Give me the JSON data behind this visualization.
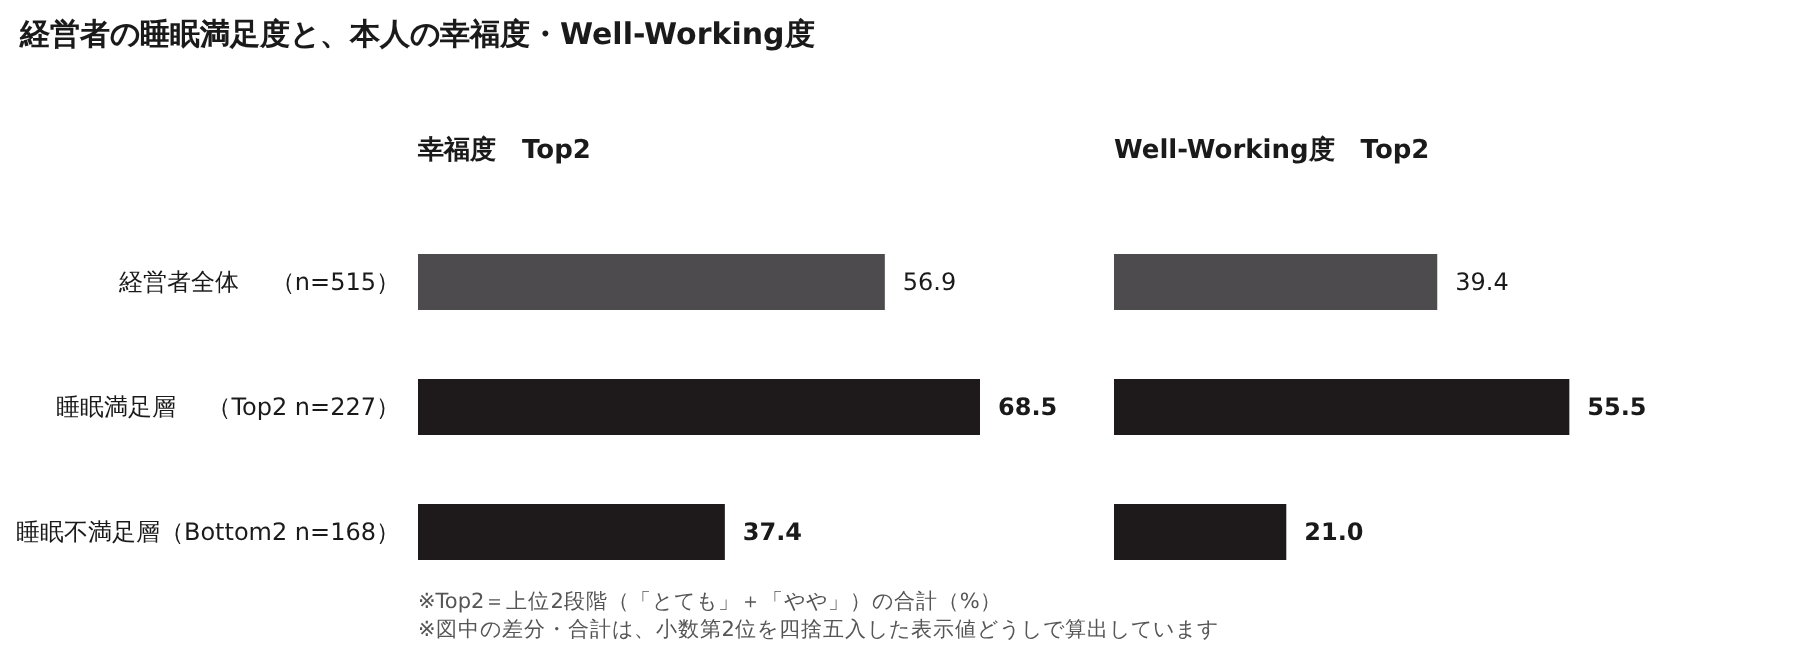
{
  "chart_data": [
    {
      "type": "bar",
      "orientation": "horizontal",
      "title": "経営者の睡眠満足度と、本人の幸福度・Well-Working度",
      "subtitle": "幸福度　Top2",
      "categories": [
        "経営者全体　 （n=515）",
        "睡眠満足層　 （Top2 n=227）",
        "睡眠不満足層（Bottom2 n=168）"
      ],
      "values": [
        56.9,
        68.5,
        37.4
      ],
      "value_labels": [
        "56.9",
        "68.5",
        "37.4"
      ],
      "colors": [
        "#4d4b4e",
        "#1e1a1c",
        "#1e1a1c"
      ],
      "annotations": [
        "※Top2＝上位2段階（「とても」＋「やや」）の合計（%）",
        "※図中の差分・合計は、小数第2位を四捨五入した表示値どうしで算出しています"
      ]
    },
    {
      "type": "bar",
      "orientation": "horizontal",
      "subtitle": "Well-Working度　Top2",
      "values": [
        39.4,
        55.5,
        21.0
      ],
      "value_labels": [
        "39.4",
        "55.5",
        "21.0"
      ],
      "colors": [
        "#4d4b4e",
        "#1e1a1c",
        "#1e1a1c"
      ]
    }
  ]
}
